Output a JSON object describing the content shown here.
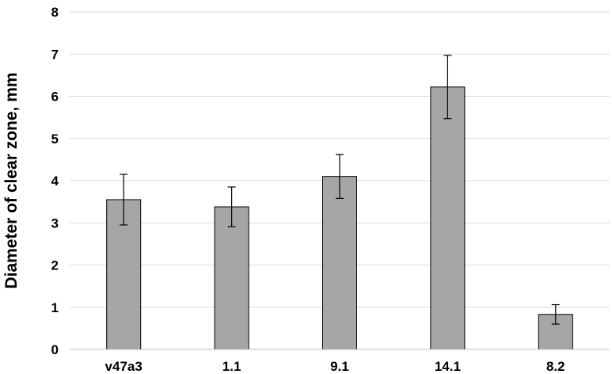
{
  "chart_data": {
    "type": "bar",
    "title": "",
    "xlabel": "",
    "ylabel": "Diameter of clear zone, mm",
    "ylim": [
      0,
      8
    ],
    "yticks": [
      0,
      1,
      2,
      3,
      4,
      5,
      6,
      7,
      8
    ],
    "categories": [
      "v47a3",
      "1.1",
      "9.1",
      "14.1",
      "8.2"
    ],
    "values": [
      3.55,
      3.38,
      4.1,
      6.22,
      0.83
    ],
    "error": [
      0.6,
      0.47,
      0.52,
      0.75,
      0.23
    ],
    "bar_color": "#a6a6a6",
    "grid": true,
    "legend": "none"
  }
}
